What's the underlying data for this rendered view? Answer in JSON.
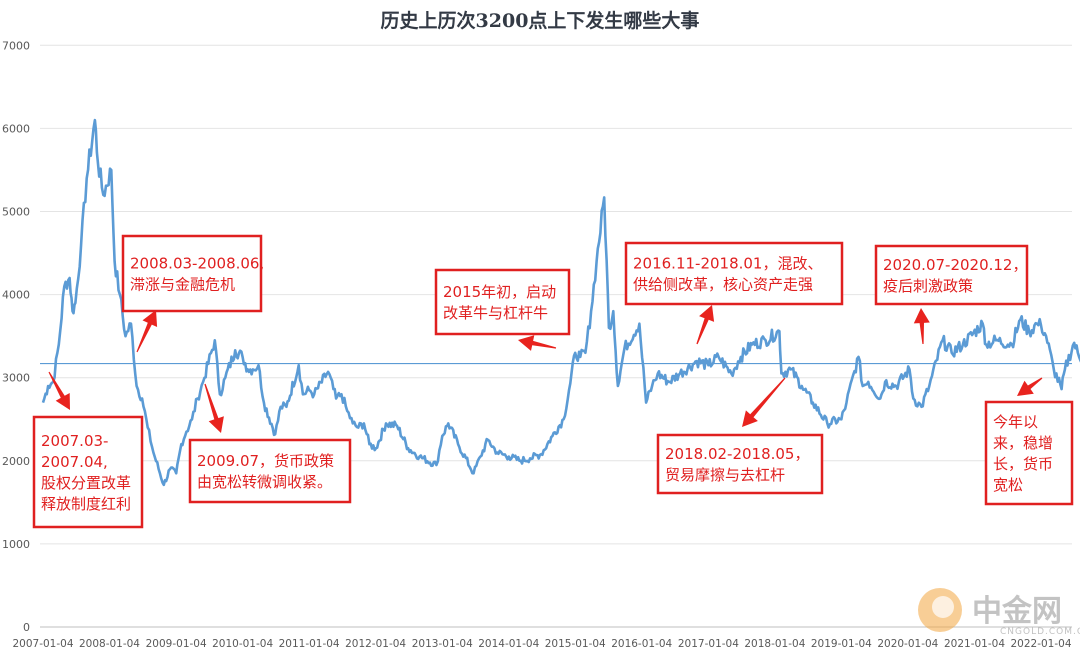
{
  "chart_data": {
    "type": "line",
    "title": "历史上历次3200点上下发生哪些大事",
    "ylim": [
      0,
      7000
    ],
    "y_ticks": [
      "0",
      "1000",
      "2000",
      "3000",
      "4000",
      "5000",
      "6000",
      "7000"
    ],
    "x_ticks": [
      "2007-01-04",
      "2008-01-04",
      "2009-01-04",
      "2010-01-04",
      "2011-01-04",
      "2012-01-04",
      "2013-01-04",
      "2014-01-04",
      "2015-01-04",
      "2016-01-04",
      "2017-01-04",
      "2018-01-04",
      "2019-01-04",
      "2020-01-04",
      "2021-01-04",
      "2022-01-04"
    ],
    "reference_line": 3170,
    "grid": true,
    "series_color": "#5b9bd5",
    "reference_color": "#5b9bd5",
    "annotation_color": "#e02020",
    "series": [
      {
        "x": [
          "2007-01-04",
          "2007-02-01",
          "2007-03-01",
          "2007-04-01",
          "2007-05-01",
          "2007-05-30",
          "2007-06-15",
          "2007-07-01",
          "2007-08-01",
          "2007-09-01",
          "2007-10-16",
          "2007-11-01",
          "2007-12-01",
          "2008-01-14",
          "2008-02-01",
          "2008-03-01",
          "2008-04-01",
          "2008-05-01",
          "2008-06-01",
          "2008-07-01",
          "2008-08-01",
          "2008-09-01",
          "2008-10-28",
          "2008-12-01",
          "2009-01-04",
          "2009-02-01",
          "2009-03-01",
          "2009-04-01",
          "2009-05-01",
          "2009-06-01",
          "2009-08-04",
          "2009-09-01",
          "2009-10-01",
          "2009-11-24",
          "2010-01-04",
          "2010-02-01",
          "2010-03-01",
          "2010-04-01",
          "2010-05-01",
          "2010-07-02",
          "2010-08-01",
          "2010-09-01",
          "2010-11-08",
          "2010-12-01",
          "2011-01-04",
          "2011-02-01",
          "2011-04-18",
          "2011-06-01",
          "2011-07-01",
          "2011-08-01",
          "2011-09-01",
          "2011-10-01",
          "2011-11-01",
          "2011-12-01",
          "2012-01-06",
          "2012-03-01",
          "2012-05-01",
          "2012-07-01",
          "2012-09-01",
          "2012-12-03",
          "2013-01-04",
          "2013-02-06",
          "2013-04-01",
          "2013-06-25",
          "2013-08-01",
          "2013-09-12",
          "2013-11-01",
          "2014-01-04",
          "2014-03-11",
          "2014-05-01",
          "2014-07-01",
          "2014-09-01",
          "2014-11-01",
          "2014-12-01",
          "2015-01-04",
          "2015-02-01",
          "2015-03-01",
          "2015-04-01",
          "2015-05-01",
          "2015-06-12",
          "2015-07-08",
          "2015-08-01",
          "2015-08-26",
          "2015-10-01",
          "2015-12-22",
          "2016-01-28",
          "2016-03-01",
          "2016-04-01",
          "2016-06-01",
          "2016-08-01",
          "2016-11-01",
          "2017-01-04",
          "2017-03-01",
          "2017-05-10",
          "2017-07-01",
          "2017-09-01",
          "2017-11-14",
          "2018-01-29",
          "2018-02-09",
          "2018-04-01",
          "2018-06-01",
          "2018-08-01",
          "2018-10-19",
          "2019-01-04",
          "2019-02-01",
          "2019-04-08",
          "2019-05-01",
          "2019-06-01",
          "2019-08-06",
          "2019-09-01",
          "2019-11-01",
          "2020-01-13",
          "2020-02-03",
          "2020-03-19",
          "2020-05-01",
          "2020-07-13",
          "2020-09-01",
          "2020-11-01",
          "2021-02-18",
          "2021-03-09",
          "2021-05-01",
          "2021-07-28",
          "2021-09-13",
          "2021-11-01",
          "2021-12-13",
          "2022-01-04",
          "2022-02-01",
          "2022-03-15",
          "2022-04-27",
          "2022-05-15",
          "2022-07-05",
          "2022-08-01",
          "2022-08-31"
        ],
        "y": [
          2700,
          2900,
          2950,
          3400,
          4100,
          4200,
          3800,
          3900,
          4600,
          5400,
          6100,
          5600,
          5200,
          5500,
          4400,
          4000,
          3500,
          3650,
          2900,
          2750,
          2400,
          2100,
          1710,
          1900,
          1850,
          2200,
          2350,
          2500,
          2750,
          2950,
          3450,
          2800,
          3000,
          3330,
          3250,
          3100,
          3100,
          3150,
          2700,
          2320,
          2650,
          2650,
          3150,
          2800,
          2850,
          2800,
          3070,
          2750,
          2800,
          2600,
          2450,
          2400,
          2450,
          2200,
          2150,
          2450,
          2420,
          2150,
          2050,
          1950,
          2300,
          2450,
          2200,
          1850,
          2050,
          2250,
          2100,
          2050,
          2000,
          2030,
          2080,
          2300,
          2500,
          2850,
          3300,
          3250,
          3300,
          3800,
          4400,
          5170,
          3600,
          3800,
          2900,
          3350,
          3650,
          2700,
          2900,
          3050,
          2950,
          3050,
          3200,
          3150,
          3250,
          3050,
          3250,
          3400,
          3450,
          3560,
          3050,
          3100,
          2900,
          2700,
          2450,
          2500,
          2700,
          3250,
          2900,
          2950,
          2750,
          2950,
          2900,
          3100,
          2750,
          2650,
          2900,
          3450,
          3300,
          3400,
          3650,
          3400,
          3450,
          3400,
          3700,
          3550,
          3650,
          3630,
          3500,
          3100,
          2863,
          3100,
          3420,
          3250,
          3200
        ]
      }
    ],
    "annotations": [
      {
        "lines": [
          "2007.03-",
          "2007.04,",
          "股权分置改革",
          "释放制度红利"
        ]
      },
      {
        "lines": [
          "2008.03-2008.06,",
          "滞涨与金融危机"
        ]
      },
      {
        "lines": [
          "2009.07，货币政策",
          "由宽松转微调收紧。"
        ]
      },
      {
        "lines": [
          "2015年初，启动",
          "改革牛与杠杆牛"
        ]
      },
      {
        "lines": [
          "2016.11-2018.01，混改、",
          "供给侧改革，核心资产走强"
        ]
      },
      {
        "lines": [
          "2018.02-2018.05，",
          "贸易摩擦与去杠杆"
        ]
      },
      {
        "lines": [
          "2020.07-2020.12，",
          "疫后刺激政策"
        ]
      },
      {
        "lines": [
          "今年以",
          "来，稳增",
          "长，货币",
          "宽松"
        ]
      }
    ],
    "watermark": {
      "name": "中金网",
      "domain": "CNGOLD.COM.CN"
    }
  }
}
